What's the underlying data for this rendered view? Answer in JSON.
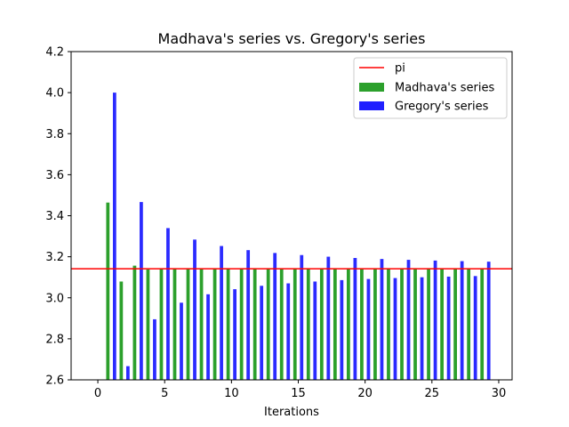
{
  "chart_data": {
    "type": "bar",
    "title": "Madhava's series vs. Gregory's series",
    "xlabel": "Iterations",
    "ylabel": "",
    "xlim": [
      -2,
      31
    ],
    "ylim": [
      2.6,
      4.2
    ],
    "xticks": [
      0,
      5,
      10,
      15,
      20,
      25,
      30
    ],
    "yticks": [
      2.6,
      2.8,
      3.0,
      3.2,
      3.4,
      3.6,
      3.8,
      4.0,
      4.2
    ],
    "grid": false,
    "legend_position": "top-right",
    "reference_line": {
      "name": "pi",
      "value": 3.14159,
      "color": "#ff0000"
    },
    "x": [
      1,
      2,
      3,
      4,
      5,
      6,
      7,
      8,
      9,
      10,
      11,
      12,
      13,
      14,
      15,
      16,
      17,
      18,
      19,
      20,
      21,
      22,
      23,
      24,
      25,
      26,
      27,
      28,
      29
    ],
    "series": [
      {
        "name": "Madhava's series",
        "color": "#2ca02c",
        "offset": -0.25,
        "values": [
          3.4641,
          3.0792,
          3.1566,
          3.1379,
          3.1426,
          3.1414,
          3.1417,
          3.1416,
          3.1416,
          3.1416,
          3.1416,
          3.1416,
          3.1416,
          3.1416,
          3.1416,
          3.1416,
          3.1416,
          3.1416,
          3.1416,
          3.1416,
          3.1416,
          3.1416,
          3.1416,
          3.1416,
          3.1416,
          3.1416,
          3.1416,
          3.1416,
          3.1416
        ]
      },
      {
        "name": "Gregory's series",
        "color": "#2020ff",
        "offset": 0.25,
        "values": [
          4.0,
          2.6667,
          3.4667,
          2.8952,
          3.3397,
          2.976,
          3.2837,
          3.0171,
          3.2524,
          3.0418,
          3.2323,
          3.0584,
          3.2184,
          3.0703,
          3.2082,
          3.0792,
          3.2003,
          3.0861,
          3.1941,
          3.0916,
          3.1891,
          3.0962,
          3.185,
          3.1,
          3.1815,
          3.1032,
          3.1786,
          3.1059,
          3.1761
        ]
      }
    ]
  }
}
